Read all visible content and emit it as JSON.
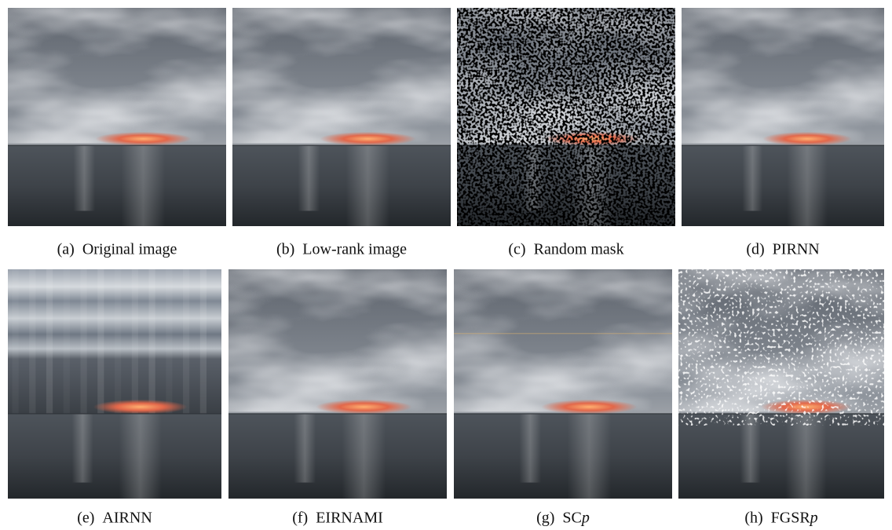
{
  "panels": [
    {
      "label": "(a)",
      "caption": "Original image"
    },
    {
      "label": "(b)",
      "caption": "Low-rank image"
    },
    {
      "label": "(c)",
      "caption": "Random mask"
    },
    {
      "label": "(d)",
      "caption": "PIRNN"
    },
    {
      "label": "(e)",
      "caption": "AIRNN"
    },
    {
      "label": "(f)",
      "caption": "EIRNAMI"
    },
    {
      "label": "(g)",
      "caption": "SC",
      "math": "p"
    },
    {
      "label": "(h)",
      "caption": "FGSR",
      "math": "p"
    }
  ]
}
